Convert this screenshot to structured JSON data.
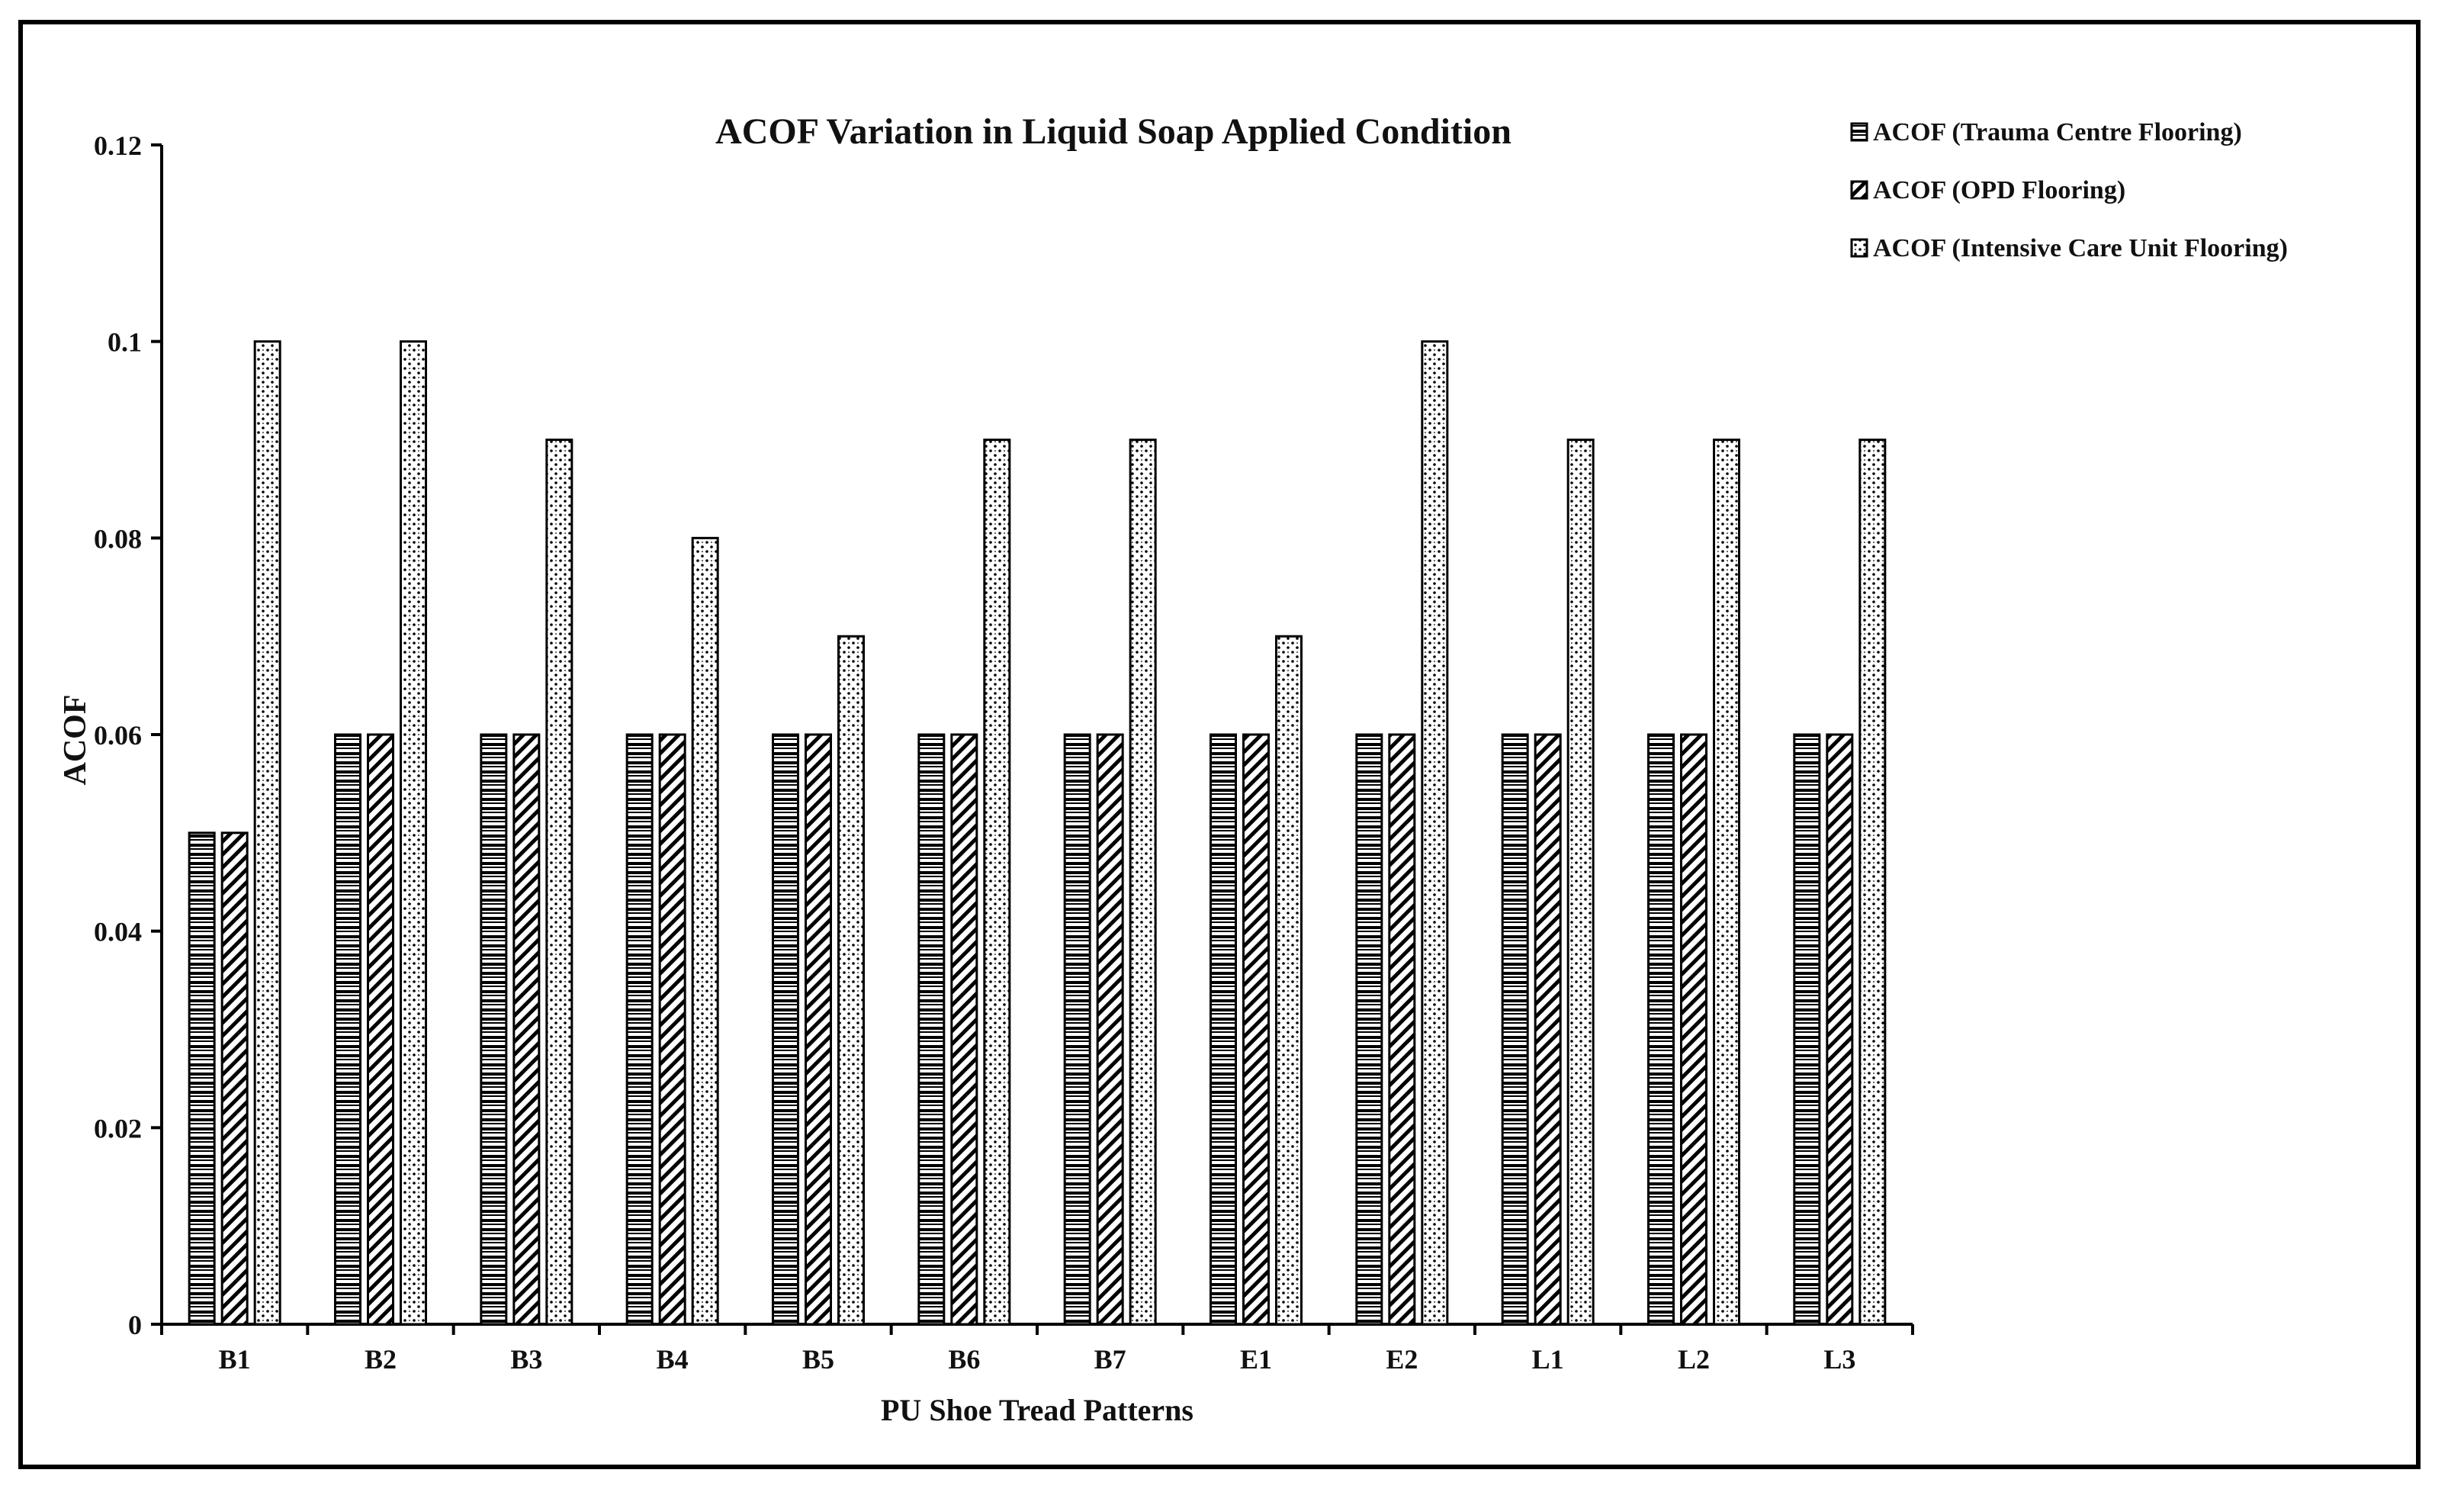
{
  "chart_data": {
    "type": "bar",
    "title": "ACOF Variation in Liquid Soap Applied Condition",
    "xlabel": "PU Shoe Tread Patterns",
    "ylabel": "ACOF",
    "ylim": [
      0,
      0.12
    ],
    "yticks": [
      "0",
      "0.02",
      "0.04",
      "0.06",
      "0.08",
      "0.1",
      "0.12"
    ],
    "grid": false,
    "legend_position": "top-right",
    "categories": [
      "B1",
      "B2",
      "B3",
      "B4",
      "B5",
      "B6",
      "B7",
      "E1",
      "E2",
      "L1",
      "L2",
      "L3"
    ],
    "series": [
      {
        "name": "ACOF (Trauma Centre Flooring)",
        "pattern": "horizontal-lines",
        "values": [
          0.05,
          0.06,
          0.06,
          0.06,
          0.06,
          0.06,
          0.06,
          0.06,
          0.06,
          0.06,
          0.06,
          0.06
        ]
      },
      {
        "name": "ACOF (OPD Flooring)",
        "pattern": "diagonal-lines",
        "values": [
          0.05,
          0.06,
          0.06,
          0.06,
          0.06,
          0.06,
          0.06,
          0.06,
          0.06,
          0.06,
          0.06,
          0.06
        ]
      },
      {
        "name": "ACOF (Intensive Care Unit Flooring)",
        "pattern": "dotted",
        "values": [
          0.1,
          0.1,
          0.09,
          0.08,
          0.07,
          0.09,
          0.09,
          0.07,
          0.1,
          0.09,
          0.09,
          0.09
        ]
      }
    ],
    "colors": {
      "ink": "#000000",
      "background": "#ffffff"
    }
  }
}
